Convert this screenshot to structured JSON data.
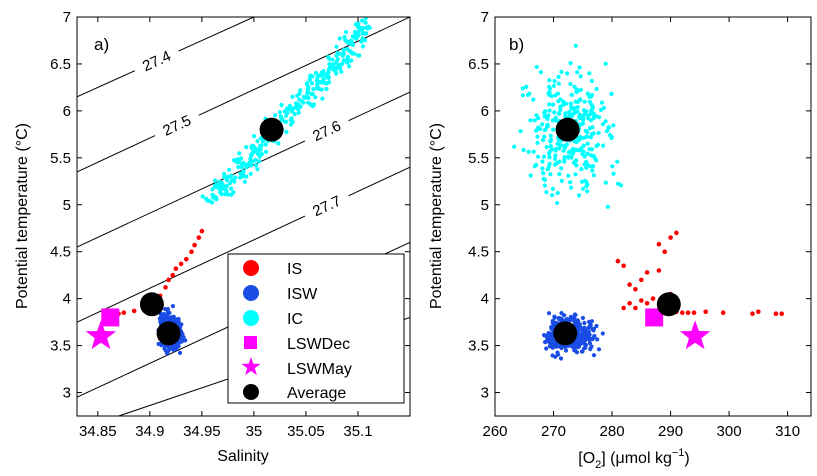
{
  "chart_data": [
    {
      "panel_label": "a)",
      "type": "scatter",
      "xlabel": "Salinity",
      "ylabel": "Potential temperature (°C)",
      "xlim": [
        34.83,
        35.15
      ],
      "ylim": [
        2.75,
        7.0
      ],
      "xticks": [
        34.85,
        34.9,
        34.95,
        35.0,
        35.05,
        35.1
      ],
      "xticklabels": [
        "34.85",
        "34.9",
        "34.95",
        "35",
        "35.05",
        "35.1"
      ],
      "yticks": [
        3,
        3.5,
        4,
        4.5,
        5,
        5.5,
        6,
        6.5,
        7
      ],
      "yticklabels": [
        "3",
        "3.5",
        "4",
        "4.5",
        "5",
        "5.5",
        "6",
        "6.5",
        "7"
      ],
      "grid": false,
      "legend_position": "lower-right",
      "legend": [
        {
          "label": "IS",
          "marker": "circle",
          "color": "#ff0000"
        },
        {
          "label": "ISW",
          "marker": "circle",
          "color": "#1a4de6"
        },
        {
          "label": "IC",
          "marker": "circle",
          "color": "#00ffff"
        },
        {
          "label": "LSWDec",
          "marker": "square",
          "color": "#ff00ff"
        },
        {
          "label": "LSWMay",
          "marker": "star",
          "color": "#ff00ff"
        },
        {
          "label": "Average",
          "marker": "circle",
          "color": "#000000"
        }
      ],
      "density_contours": [
        {
          "label": "27.4",
          "points": [
            [
              34.83,
              6.15
            ],
            [
              35.0,
              7.0
            ]
          ]
        },
        {
          "label": "27.5",
          "points": [
            [
              34.83,
              5.35
            ],
            [
              35.15,
              7.0
            ]
          ]
        },
        {
          "label": "27.6",
          "points": [
            [
              34.83,
              4.55
            ],
            [
              35.15,
              6.2
            ]
          ]
        },
        {
          "label": "27.7",
          "points": [
            [
              34.83,
              3.75
            ],
            [
              35.15,
              5.4
            ]
          ]
        },
        {
          "label": "",
          "points": [
            [
              34.83,
              2.95
            ],
            [
              35.15,
              4.6
            ]
          ]
        },
        {
          "label": "",
          "points": [
            [
              34.87,
              2.75
            ],
            [
              35.15,
              3.8
            ]
          ]
        }
      ],
      "series": [
        {
          "name": "IS",
          "color": "#ff0000",
          "points": [
            [
              34.87,
              3.84
            ],
            [
              34.875,
              3.85
            ],
            [
              34.885,
              3.87
            ],
            [
              34.895,
              3.9
            ],
            [
              34.9,
              3.93
            ],
            [
              34.905,
              3.98
            ],
            [
              34.91,
              4.03
            ],
            [
              34.915,
              4.12
            ],
            [
              34.918,
              4.2
            ],
            [
              34.922,
              4.25
            ],
            [
              34.925,
              4.32
            ],
            [
              34.93,
              4.37
            ],
            [
              34.935,
              4.42
            ],
            [
              34.94,
              4.5
            ],
            [
              34.943,
              4.57
            ],
            [
              34.947,
              4.65
            ],
            [
              34.95,
              4.72
            ]
          ]
        },
        {
          "name": "ISW",
          "color": "#1a4de6",
          "cluster": {
            "x": [
              34.905,
              34.935
            ],
            "y": [
              3.35,
              3.9
            ],
            "center": [
              34.918,
              3.65
            ]
          }
        },
        {
          "name": "IC",
          "color": "#00ffff",
          "cluster": {
            "x": [
              34.96,
              35.11
            ],
            "y": [
              5.0,
              6.95
            ],
            "trend": [
              [
                34.96,
                5.05
              ],
              [
                35.11,
                6.9
              ]
            ]
          }
        },
        {
          "name": "LSWDec",
          "color": "#ff00ff",
          "points": [
            [
              34.862,
              3.8
            ]
          ]
        },
        {
          "name": "LSWMay",
          "color": "#ff00ff",
          "points": [
            [
              34.853,
              3.6
            ]
          ]
        },
        {
          "name": "Average",
          "color": "#000000",
          "points": [
            [
              34.902,
              3.94
            ],
            [
              34.918,
              3.63
            ],
            [
              35.017,
              5.8
            ]
          ]
        }
      ]
    },
    {
      "panel_label": "b)",
      "type": "scatter",
      "xlabel": "[O2] (μmol kg−1)",
      "ylabel": "Potential temperature (°C)",
      "xlim": [
        260,
        314
      ],
      "ylim": [
        2.75,
        7.0
      ],
      "xticks": [
        260,
        270,
        280,
        290,
        300,
        310
      ],
      "xticklabels": [
        "260",
        "270",
        "280",
        "290",
        "300",
        "310"
      ],
      "yticks": [
        3,
        3.5,
        4,
        4.5,
        5,
        5.5,
        6,
        6.5,
        7
      ],
      "yticklabels": [
        "3",
        "3.5",
        "4",
        "4.5",
        "5",
        "5.5",
        "6",
        "6.5",
        "7"
      ],
      "grid": false,
      "series": [
        {
          "name": "IS",
          "color": "#ff0000",
          "points": [
            [
              281,
              4.4
            ],
            [
              282,
              4.35
            ],
            [
              283,
              4.15
            ],
            [
              284,
              4.1
            ],
            [
              285,
              4.2
            ],
            [
              286,
              4.28
            ],
            [
              283,
              3.95
            ],
            [
              284,
              3.9
            ],
            [
              285,
              3.98
            ],
            [
              286,
              3.95
            ],
            [
              288,
              4.58
            ],
            [
              289,
              4.5
            ],
            [
              290,
              4.65
            ],
            [
              291,
              4.7
            ],
            [
              288,
              4.3
            ],
            [
              290,
              4.05
            ],
            [
              291,
              3.86
            ],
            [
              292,
              3.85
            ],
            [
              293,
              3.85
            ],
            [
              294,
              3.85
            ],
            [
              296,
              3.86
            ],
            [
              299,
              3.85
            ],
            [
              304,
              3.84
            ],
            [
              305,
              3.86
            ],
            [
              308,
              3.84
            ],
            [
              309,
              3.84
            ],
            [
              282,
              3.9
            ],
            [
              287,
              4.0
            ],
            [
              289,
              3.9
            ]
          ]
        },
        {
          "name": "ISW",
          "color": "#1a4de6",
          "cluster": {
            "x": [
              267,
              279
            ],
            "y": [
              3.35,
              3.9
            ],
            "center": [
              272,
              3.62
            ]
          }
        },
        {
          "name": "IC",
          "color": "#00ffff",
          "cluster": {
            "x": [
              263,
              285
            ],
            "y": [
              5.0,
              6.95
            ],
            "center": [
              272.5,
              5.8
            ]
          }
        },
        {
          "name": "LSWDec",
          "color": "#ff00ff",
          "points": [
            [
              287.2,
              3.8
            ]
          ]
        },
        {
          "name": "LSWMay",
          "color": "#ff00ff",
          "points": [
            [
              294.2,
              3.6
            ]
          ]
        },
        {
          "name": "Average",
          "color": "#000000",
          "points": [
            [
              272.4,
              5.8
            ],
            [
              272.0,
              3.63
            ],
            [
              289.7,
              3.94
            ]
          ]
        }
      ]
    }
  ]
}
